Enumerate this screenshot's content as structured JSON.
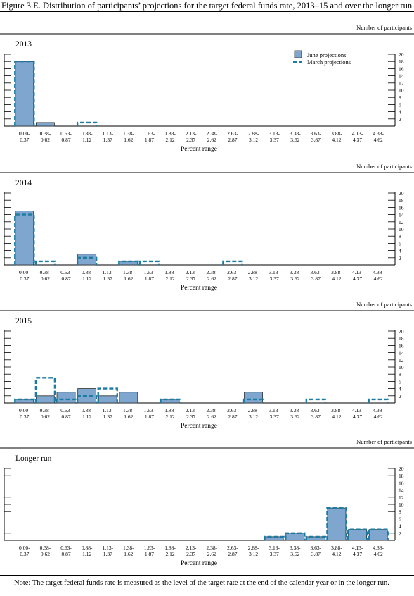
{
  "figure": {
    "title": "Figure 3.E. Distribution of participants’ projections for the target federal funds rate, 2013–15 and over the longer run",
    "note": "Note: The target federal funds rate is measured as the level of the target rate at the end of the calendar year or in the longer run."
  },
  "chart_data": [
    {
      "type": "bar",
      "title": "2013",
      "ylabel": "Number of participants",
      "xlabel": "Percent range",
      "categories": [
        "0.00-\n0.37",
        "0.38-\n0.62",
        "0.63-\n0.87",
        "0.88-\n1.12",
        "1.13-\n1.37",
        "1.38-\n1.62",
        "1.63-\n1.87",
        "1.88-\n2.12",
        "2.13-\n2.37",
        "2.38-\n2.62",
        "2.63-\n2.87",
        "2.88-\n3.12",
        "3.13-\n3.37",
        "3.38-\n3.62",
        "3.63-\n3.87",
        "3.88-\n4.12",
        "4.13-\n4.37",
        "4.38-\n4.62"
      ],
      "yticks": [
        2,
        4,
        6,
        8,
        10,
        12,
        14,
        16,
        18,
        20
      ],
      "ylim": [
        0,
        20
      ],
      "legend": {
        "position": "top-right"
      },
      "series": [
        {
          "name": "June projections",
          "style": "bar",
          "color": "#7fa6cf",
          "values": [
            18,
            1,
            0,
            0,
            0,
            0,
            0,
            0,
            0,
            0,
            0,
            0,
            0,
            0,
            0,
            0,
            0,
            0
          ]
        },
        {
          "name": "March projections",
          "style": "dashed-outline",
          "color": "#1b7ba0",
          "values": [
            18,
            0,
            0,
            1,
            0,
            0,
            0,
            0,
            0,
            0,
            0,
            0,
            0,
            0,
            0,
            0,
            0,
            0
          ]
        }
      ]
    },
    {
      "type": "bar",
      "title": "2014",
      "ylabel": "Number of participants",
      "xlabel": "Percent range",
      "categories": [
        "0.00-\n0.37",
        "0.38-\n0.62",
        "0.63-\n0.87",
        "0.88-\n1.12",
        "1.13-\n1.37",
        "1.38-\n1.62",
        "1.63-\n1.87",
        "1.88-\n2.12",
        "2.13-\n2.37",
        "2.38-\n2.62",
        "2.63-\n2.87",
        "2.88-\n3.12",
        "3.13-\n3.37",
        "3.38-\n3.62",
        "3.63-\n3.87",
        "3.88-\n4.12",
        "4.13-\n4.37",
        "4.38-\n4.62"
      ],
      "yticks": [
        2,
        4,
        6,
        8,
        10,
        12,
        14,
        16,
        18,
        20
      ],
      "ylim": [
        0,
        20
      ],
      "series": [
        {
          "name": "June projections",
          "style": "bar",
          "color": "#7fa6cf",
          "values": [
            15,
            0,
            0,
            3,
            0,
            1,
            0,
            0,
            0,
            0,
            0,
            0,
            0,
            0,
            0,
            0,
            0,
            0
          ]
        },
        {
          "name": "March projections",
          "style": "dashed-outline",
          "color": "#1b7ba0",
          "values": [
            14,
            1,
            0,
            2,
            0,
            1,
            1,
            0,
            0,
            0,
            1,
            0,
            0,
            0,
            0,
            0,
            0,
            0
          ]
        }
      ]
    },
    {
      "type": "bar",
      "title": "2015",
      "ylabel": "Number of participants",
      "xlabel": "Percent range",
      "categories": [
        "0.00-\n0.37",
        "0.38-\n0.62",
        "0.63-\n0.87",
        "0.88-\n1.12",
        "1.13-\n1.37",
        "1.38-\n1.62",
        "1.63-\n1.87",
        "1.88-\n2.12",
        "2.13-\n2.37",
        "2.38-\n2.62",
        "2.63-\n2.87",
        "2.88-\n3.12",
        "3.13-\n3.37",
        "3.38-\n3.62",
        "3.63-\n3.87",
        "3.88-\n4.12",
        "4.13-\n4.37",
        "4.38-\n4.62"
      ],
      "yticks": [
        2,
        4,
        6,
        8,
        10,
        12,
        14,
        16,
        18,
        20
      ],
      "ylim": [
        0,
        20
      ],
      "series": [
        {
          "name": "June projections",
          "style": "bar",
          "color": "#7fa6cf",
          "values": [
            1,
            2,
            3,
            4,
            2,
            3,
            0,
            1,
            0,
            0,
            0,
            3,
            0,
            0,
            0,
            0,
            0,
            0
          ]
        },
        {
          "name": "March projections",
          "style": "dashed-outline",
          "color": "#1b7ba0",
          "values": [
            1,
            7,
            1,
            2,
            4,
            0,
            0,
            1,
            0,
            0,
            0,
            1,
            0,
            0,
            1,
            0,
            0,
            1
          ]
        }
      ]
    },
    {
      "type": "bar",
      "title": "Longer run",
      "ylabel": "Number of participants",
      "xlabel": "Percent range",
      "categories": [
        "0.00-\n0.37",
        "0.38-\n0.62",
        "0.63-\n0.87",
        "0.88-\n1.12",
        "1.13-\n1.37",
        "1.38-\n1.62",
        "1.63-\n1.87",
        "1.88-\n2.12",
        "2.13-\n2.37",
        "2.38-\n2.62",
        "2.63-\n2.87",
        "2.88-\n3.12",
        "3.13-\n3.37",
        "3.38-\n3.62",
        "3.63-\n3.87",
        "3.88-\n4.12",
        "4.13-\n4.37",
        "4.38-\n4.62"
      ],
      "yticks": [
        2,
        4,
        6,
        8,
        10,
        12,
        14,
        16,
        18,
        20
      ],
      "ylim": [
        0,
        20
      ],
      "series": [
        {
          "name": "June projections",
          "style": "bar",
          "color": "#7fa6cf",
          "values": [
            0,
            0,
            0,
            0,
            0,
            0,
            0,
            0,
            0,
            0,
            0,
            0,
            1,
            2,
            1,
            9,
            3,
            3
          ]
        },
        {
          "name": "March projections",
          "style": "dashed-outline",
          "color": "#1b7ba0",
          "values": [
            0,
            0,
            0,
            0,
            0,
            0,
            0,
            0,
            0,
            0,
            0,
            0,
            1,
            2,
            1,
            9,
            3,
            3
          ]
        }
      ]
    }
  ]
}
